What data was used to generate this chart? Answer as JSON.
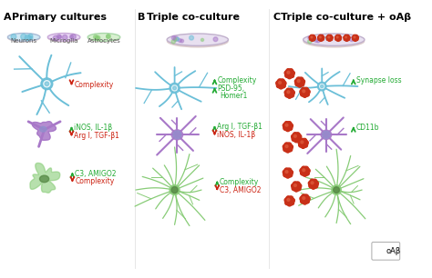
{
  "title_A": "Primary cultures",
  "title_B": "Triple co-culture",
  "title_C": "Triple co-culture + oAβ",
  "label_A": "A",
  "label_B": "B",
  "label_C": "C",
  "neuron_color": "#6BBFD8",
  "neuron_color2": "#4AACCF",
  "microglia_color": "#A878C8",
  "microglia_color2": "#9060B8",
  "astrocyte_color": "#88CC77",
  "astrocyte_color2": "#66BB44",
  "oabeta_color": "#C83018",
  "oabeta_highlight": "#E05030",
  "arrow_up_color": "#22AA33",
  "arrow_down_color": "#CC2211",
  "bg_color": "#FFFFFF",
  "divider_color": "#DDDDDD",
  "dish_neuron_fill": "#D0E8F5",
  "dish_micro_fill": "#EAD8F5",
  "dish_astro_fill": "#D8F0D0",
  "dish_triple_fill": "#E5E0EE",
  "dish_edge": "#C8B8D0",
  "nucleus_color": "#AABBDD",
  "nucleus_micro": "#AAAACC",
  "nucleus_astro": "#77AA55"
}
